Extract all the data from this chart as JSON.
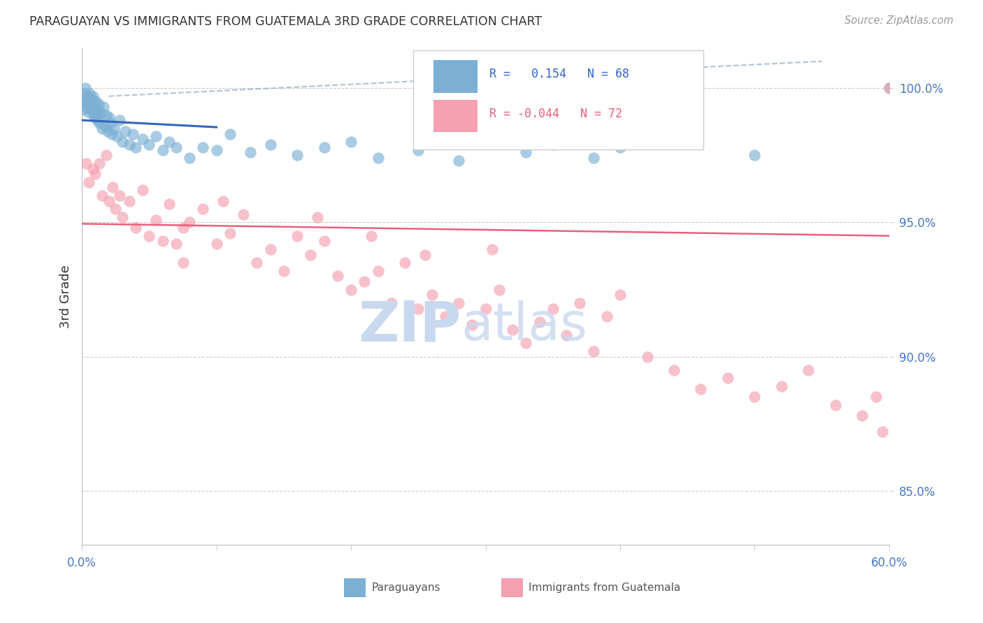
{
  "title": "PARAGUAYAN VS IMMIGRANTS FROM GUATEMALA 3RD GRADE CORRELATION CHART",
  "source": "Source: ZipAtlas.com",
  "ylabel": "3rd Grade",
  "xlim": [
    0.0,
    60.0
  ],
  "ylim": [
    83.0,
    101.5
  ],
  "yticks": [
    85.0,
    90.0,
    95.0,
    100.0
  ],
  "xticks": [
    0.0,
    10.0,
    20.0,
    30.0,
    40.0,
    50.0,
    60.0
  ],
  "color_blue": "#7BAFD4",
  "color_pink": "#F4A0B0",
  "color_blue_line": "#3366BB",
  "color_pink_line": "#E8607A",
  "color_blue_dash": "#88AACC",
  "paraguayan_x": [
    0.1,
    0.15,
    0.2,
    0.25,
    0.3,
    0.35,
    0.4,
    0.45,
    0.5,
    0.55,
    0.6,
    0.65,
    0.7,
    0.75,
    0.8,
    0.85,
    0.9,
    0.95,
    1.0,
    1.05,
    1.1,
    1.15,
    1.2,
    1.25,
    1.3,
    1.4,
    1.5,
    1.6,
    1.7,
    1.8,
    1.9,
    2.0,
    2.1,
    2.2,
    2.4,
    2.6,
    2.8,
    3.0,
    3.2,
    3.5,
    3.8,
    4.0,
    4.5,
    5.0,
    5.5,
    6.0,
    6.5,
    7.0,
    8.0,
    9.0,
    10.0,
    11.0,
    12.5,
    14.0,
    16.0,
    18.0,
    20.0,
    22.0,
    25.0,
    28.0,
    30.0,
    33.0,
    35.0,
    38.0,
    40.0,
    45.0,
    50.0,
    60.0
  ],
  "paraguayan_y": [
    99.2,
    99.5,
    99.8,
    100.0,
    99.6,
    99.3,
    99.7,
    99.4,
    99.1,
    99.8,
    99.5,
    99.2,
    99.6,
    99.3,
    99.7,
    99.0,
    99.4,
    99.1,
    98.9,
    99.5,
    99.2,
    98.8,
    99.0,
    99.4,
    98.7,
    99.1,
    98.5,
    99.3,
    98.6,
    99.0,
    98.4,
    98.9,
    98.7,
    98.3,
    98.5,
    98.2,
    98.8,
    98.0,
    98.4,
    97.9,
    98.3,
    97.8,
    98.1,
    97.9,
    98.2,
    97.7,
    98.0,
    97.8,
    97.4,
    97.8,
    97.7,
    98.3,
    97.6,
    97.9,
    97.5,
    97.8,
    98.0,
    97.4,
    97.7,
    97.3,
    98.1,
    97.6,
    97.9,
    97.4,
    97.8,
    98.0,
    97.5,
    100.0
  ],
  "guatemala_x": [
    0.3,
    0.5,
    0.8,
    1.0,
    1.3,
    1.5,
    1.8,
    2.0,
    2.3,
    2.5,
    2.8,
    3.0,
    3.5,
    4.0,
    4.5,
    5.0,
    5.5,
    6.0,
    6.5,
    7.0,
    7.5,
    8.0,
    9.0,
    10.0,
    11.0,
    12.0,
    13.0,
    14.0,
    15.0,
    16.0,
    17.0,
    18.0,
    19.0,
    20.0,
    21.0,
    22.0,
    23.0,
    24.0,
    25.0,
    26.0,
    27.0,
    28.0,
    29.0,
    30.0,
    31.0,
    32.0,
    33.0,
    34.0,
    35.0,
    36.0,
    37.0,
    38.0,
    39.0,
    40.0,
    42.0,
    44.0,
    46.0,
    48.0,
    50.0,
    52.0,
    54.0,
    56.0,
    58.0,
    59.0,
    59.5,
    60.0,
    7.5,
    10.5,
    17.5,
    21.5,
    25.5,
    30.5
  ],
  "guatemala_y": [
    97.2,
    96.5,
    97.0,
    96.8,
    97.2,
    96.0,
    97.5,
    95.8,
    96.3,
    95.5,
    96.0,
    95.2,
    95.8,
    94.8,
    96.2,
    94.5,
    95.1,
    94.3,
    95.7,
    94.2,
    94.8,
    95.0,
    95.5,
    94.2,
    94.6,
    95.3,
    93.5,
    94.0,
    93.2,
    94.5,
    93.8,
    94.3,
    93.0,
    92.5,
    92.8,
    93.2,
    92.0,
    93.5,
    91.8,
    92.3,
    91.5,
    92.0,
    91.2,
    91.8,
    92.5,
    91.0,
    90.5,
    91.3,
    91.8,
    90.8,
    92.0,
    90.2,
    91.5,
    92.3,
    90.0,
    89.5,
    88.8,
    89.2,
    88.5,
    88.9,
    89.5,
    88.2,
    87.8,
    88.5,
    87.2,
    100.0,
    93.5,
    95.8,
    95.2,
    94.5,
    93.8,
    94.0
  ],
  "blue_reg_start_x": 0.0,
  "blue_reg_end_x": 10.0,
  "blue_dash_start_x": 10.0,
  "blue_dash_end_x": 55.0,
  "pink_reg_start_x": 0.0,
  "pink_reg_end_x": 60.0
}
